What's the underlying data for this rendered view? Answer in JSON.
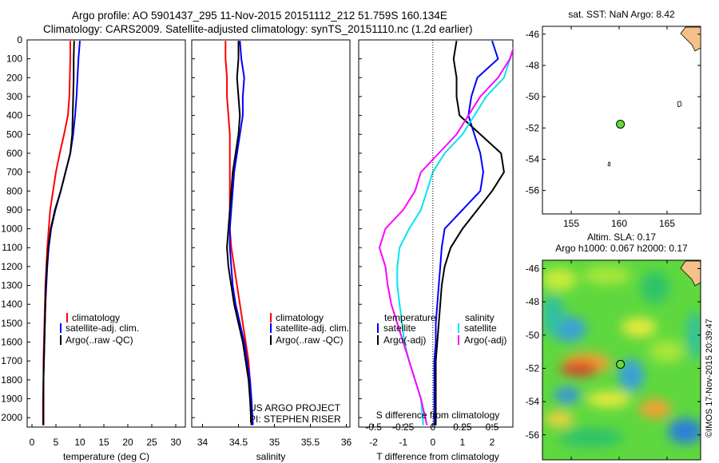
{
  "header": {
    "title_line1": "Argo profile: AO 5901437_295 11-Nov-2015 20151112_212 51.759S 160.134E",
    "title_line2": "Climatology: CARS2009. Satellite-adjusted climatology: synTS_20151110.nc (1.2d earlier)"
  },
  "credits": {
    "project": "US ARGO PROJECT",
    "pi": "PI: STEPHEN RISER",
    "watermark": "©IMOS 17-Nov-2015 20:39:47"
  },
  "colors": {
    "climatology": "#ff0000",
    "satellite": "#0000ff",
    "argo": "#000000",
    "satellite_salinity": "#00e5ee",
    "argo_salinity": "#ff00ff",
    "land": "#f5c08a",
    "float_marker": "#66dd33"
  },
  "chart_data": [
    {
      "type": "line",
      "xlabel": "temperature (deg C)",
      "xticks": [
        0,
        5,
        10,
        15,
        20,
        25,
        30
      ],
      "xlim": [
        -1,
        32
      ],
      "ylim": [
        2050,
        0
      ],
      "yticks": [
        0,
        100,
        200,
        300,
        400,
        500,
        600,
        700,
        800,
        900,
        1000,
        1100,
        1200,
        1300,
        1400,
        1500,
        1600,
        1700,
        1800,
        1900,
        2000
      ],
      "legend": [
        "climatology",
        "satellite-adj. clim.",
        "Argo(..raw -QC)"
      ],
      "series": [
        {
          "name": "climatology",
          "x": [
            8.0,
            8.0,
            7.9,
            7.8,
            7.5,
            6.7,
            5.8,
            5.0,
            4.4,
            3.8,
            3.5,
            3.2,
            3.0,
            2.8,
            2.7,
            2.6,
            2.5,
            2.4,
            2.4,
            2.3,
            2.3
          ],
          "y": [
            5,
            100,
            200,
            300,
            400,
            500,
            600,
            700,
            800,
            900,
            1000,
            1100,
            1200,
            1300,
            1400,
            1500,
            1600,
            1700,
            1800,
            1900,
            2040
          ]
        },
        {
          "name": "satellite-adj. clim.",
          "x": [
            10.0,
            9.7,
            9.5,
            9.3,
            9.0,
            8.6,
            8.0,
            7.0,
            6.0,
            4.9,
            4.0,
            3.5,
            3.2,
            3.0,
            2.8,
            2.7,
            2.6,
            2.5,
            2.4,
            2.4,
            2.4
          ],
          "y": [
            5,
            100,
            200,
            300,
            400,
            500,
            600,
            700,
            800,
            900,
            1000,
            1100,
            1200,
            1300,
            1400,
            1500,
            1600,
            1700,
            1800,
            1900,
            2040
          ]
        },
        {
          "name": "Argo(..raw -QC)",
          "x": [
            8.8,
            8.7,
            8.7,
            8.6,
            8.5,
            8.4,
            8.0,
            7.0,
            6.0,
            4.8,
            3.9,
            3.4,
            3.1,
            2.9,
            2.8,
            2.7,
            2.6,
            2.5,
            2.4,
            2.4,
            2.4
          ],
          "y": [
            5,
            100,
            200,
            300,
            400,
            500,
            600,
            700,
            800,
            900,
            1000,
            1100,
            1200,
            1300,
            1400,
            1500,
            1600,
            1700,
            1800,
            1900,
            2040
          ]
        }
      ]
    },
    {
      "type": "line",
      "xlabel": "salinity",
      "xticks": [
        34,
        34.5,
        35,
        35.5,
        36
      ],
      "xlim": [
        33.85,
        36.05
      ],
      "ylim": [
        2050,
        0
      ],
      "legend": [
        "climatology",
        "satellite-adj. clim.",
        "Argo(..raw -QC)"
      ],
      "series": [
        {
          "name": "climatology",
          "x": [
            34.32,
            34.32,
            34.34,
            34.34,
            34.36,
            34.38,
            34.38,
            34.38,
            34.38,
            34.38,
            34.38,
            34.4,
            34.44,
            34.48,
            34.52,
            34.56,
            34.6,
            34.64,
            34.66,
            34.68,
            34.7
          ],
          "y": [
            5,
            100,
            200,
            300,
            400,
            500,
            600,
            700,
            800,
            900,
            1000,
            1100,
            1200,
            1300,
            1400,
            1500,
            1600,
            1700,
            1800,
            1900,
            2040
          ]
        },
        {
          "name": "satellite-adj. clim.",
          "x": [
            34.52,
            34.54,
            34.58,
            34.56,
            34.56,
            34.52,
            34.48,
            34.44,
            34.42,
            34.4,
            34.38,
            34.38,
            34.4,
            34.42,
            34.46,
            34.52,
            34.58,
            34.62,
            34.66,
            34.68,
            34.7
          ],
          "y": [
            5,
            100,
            200,
            300,
            400,
            500,
            600,
            700,
            800,
            900,
            1000,
            1100,
            1200,
            1300,
            1400,
            1500,
            1600,
            1700,
            1800,
            1900,
            2040
          ]
        },
        {
          "name": "Argo(..raw -QC)",
          "x": [
            34.5,
            34.5,
            34.48,
            34.5,
            34.52,
            34.5,
            34.46,
            34.42,
            34.4,
            34.38,
            34.36,
            34.34,
            34.36,
            34.4,
            34.44,
            34.5,
            34.56,
            34.6,
            34.64,
            34.66,
            34.68
          ],
          "y": [
            5,
            100,
            200,
            300,
            400,
            500,
            600,
            700,
            800,
            900,
            1000,
            1100,
            1200,
            1300,
            1400,
            1500,
            1600,
            1700,
            1800,
            1900,
            2040
          ]
        }
      ]
    },
    {
      "type": "line",
      "xlabel": "T difference from climatology",
      "top_label": "S difference from climatology",
      "xticks": [
        -2,
        -1,
        0,
        1,
        2
      ],
      "xticks_top": [
        "-0.5",
        "-0.25",
        "0",
        "0.25",
        "0.5"
      ],
      "xlim": [
        -2.5,
        2.7
      ],
      "ylim": [
        2050,
        0
      ],
      "legend_title_t": "temperature",
      "legend_title_s": "salinity",
      "legend": [
        "satellite",
        "Argo(-adj)",
        "satellite",
        "Argo(-adj)"
      ],
      "series": [
        {
          "name": "satellite",
          "x": [
            2.0,
            2.2,
            1.5,
            1.3,
            1.2,
            1.4,
            1.6,
            1.7,
            1.6,
            1.0,
            0.4,
            0.3,
            0.25,
            0.2,
            0.15,
            0.1,
            0.1,
            0.05,
            0.05,
            0.05,
            0.05
          ],
          "y": [
            5,
            100,
            200,
            300,
            400,
            500,
            600,
            700,
            800,
            900,
            1000,
            1100,
            1200,
            1300,
            1400,
            1500,
            1600,
            1700,
            1800,
            1900,
            2040
          ]
        },
        {
          "name": "Argo(-adj)",
          "x": [
            0.8,
            0.7,
            0.8,
            0.8,
            0.9,
            1.6,
            2.3,
            2.4,
            2.0,
            1.5,
            1.0,
            0.6,
            0.4,
            0.3,
            0.25,
            0.2,
            0.15,
            0.1,
            0.1,
            0.1,
            0.1
          ],
          "y": [
            5,
            100,
            200,
            300,
            400,
            500,
            600,
            700,
            800,
            900,
            1000,
            1100,
            1200,
            1300,
            1400,
            1500,
            1600,
            1700,
            1800,
            1900,
            2040
          ]
        },
        {
          "name": "satellite",
          "x": [
            0.7,
            0.65,
            0.6,
            0.45,
            0.35,
            0.25,
            0.1,
            0.0,
            -0.05,
            -0.1,
            -0.2,
            -0.28,
            -0.3,
            -0.3,
            -0.28,
            -0.26,
            -0.24,
            -0.2,
            -0.15,
            -0.1,
            -0.08
          ],
          "y": [
            5,
            100,
            200,
            300,
            400,
            500,
            600,
            700,
            800,
            900,
            1000,
            1100,
            1200,
            1300,
            1400,
            1500,
            1600,
            1700,
            1800,
            1900,
            2040
          ]
        },
        {
          "name": "Argo(-adj)",
          "x": [
            0.7,
            0.65,
            0.55,
            0.4,
            0.3,
            0.2,
            0.05,
            -0.1,
            -0.15,
            -0.25,
            -0.4,
            -0.45,
            -0.4,
            -0.38,
            -0.35,
            -0.3,
            -0.25,
            -0.2,
            -0.15,
            -0.1,
            -0.05
          ],
          "y": [
            5,
            100,
            200,
            300,
            400,
            500,
            600,
            700,
            800,
            900,
            1000,
            1100,
            1200,
            1300,
            1400,
            1500,
            1600,
            1700,
            1800,
            1900,
            2040
          ]
        }
      ]
    },
    {
      "type": "scatter",
      "title": "sat. SST: NaN Argo: 8.42",
      "xticks": [
        155,
        160,
        165
      ],
      "yticks": [
        -46,
        -48,
        -50,
        -52,
        -54,
        -56
      ],
      "xlim": [
        152,
        168.5
      ],
      "ylim": [
        -57.5,
        -45.5
      ],
      "float_position": [
        160.134,
        -51.759
      ]
    },
    {
      "type": "heatmap",
      "title": "Altim. SLA: 0.17",
      "subtitle": "Argo h1000: 0.067 h2000: 0.17",
      "xticks": [
        155,
        160,
        165
      ],
      "yticks": [
        -46,
        -48,
        -50,
        -52,
        -54,
        -56
      ],
      "xlim": [
        152,
        168.5
      ],
      "ylim": [
        -57.5,
        -45.5
      ],
      "float_position": [
        160.134,
        -51.759
      ]
    }
  ]
}
